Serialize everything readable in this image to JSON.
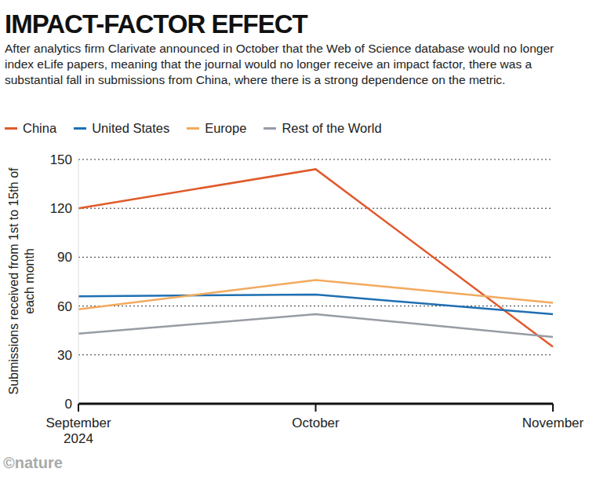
{
  "chart_data": {
    "type": "line",
    "title": "IMPACT-FACTOR EFFECT",
    "subtitle": "After analytics firm Clarivate announced in October that the Web of Science database would no longer index eLife papers, meaning that the journal would no longer receive an impact factor, there was a substantial fall in submissions from China, where there is a strong dependence on the metric.",
    "y_label": "Submissions received from 1st to 15th of each month",
    "source": "©nature",
    "categories": [
      "September 2024",
      "October",
      "November"
    ],
    "series": [
      {
        "name": "China",
        "color": "#e05a2b",
        "values": [
          120,
          144,
          35
        ]
      },
      {
        "name": "United States",
        "color": "#1f6fb2",
        "values": [
          66,
          67,
          55
        ]
      },
      {
        "name": "Europe",
        "color": "#f2aa5e",
        "values": [
          58,
          76,
          62
        ]
      },
      {
        "name": "Rest of the World",
        "color": "#979ca4",
        "values": [
          43,
          55,
          41
        ]
      }
    ],
    "ylim": [
      0,
      150
    ],
    "yticks": [
      0,
      30,
      60,
      90,
      120,
      150
    ],
    "grid": true
  }
}
